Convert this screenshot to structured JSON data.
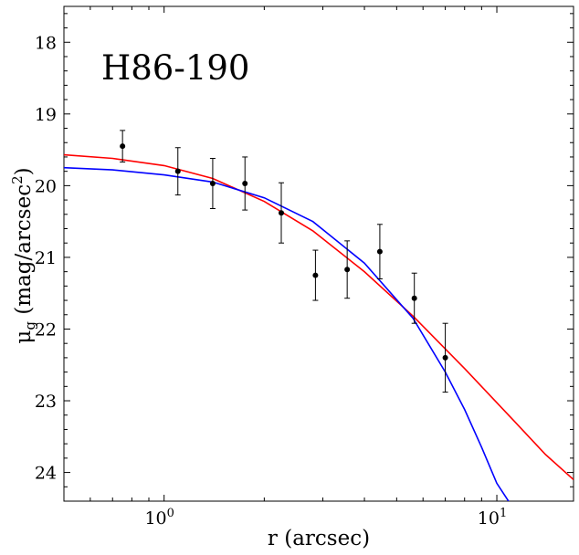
{
  "chart_data": {
    "type": "scatter",
    "title": "H86-190",
    "xlabel": "r (arcsec)",
    "ylabel_main": "μ",
    "ylabel_sub": "g",
    "ylabel_rest": " (mag/arcsec",
    "ylabel_sup": "2",
    "ylabel_end": ")",
    "xscale": "log",
    "xlim": [
      0.5,
      17
    ],
    "ylim": [
      24.4,
      17.5
    ],
    "y_inverted": true,
    "x_ticks": [
      {
        "value": 1,
        "base": "10",
        "exp": "0"
      },
      {
        "value": 10,
        "base": "10",
        "exp": "1"
      }
    ],
    "y_ticks": [
      18,
      19,
      20,
      21,
      22,
      23,
      24
    ],
    "series": [
      {
        "kind": "points",
        "color": "#000000",
        "x": [
          0.75,
          1.1,
          1.4,
          1.75,
          2.25,
          2.85,
          3.55,
          4.45,
          5.65,
          7.0
        ],
        "y": [
          19.45,
          19.8,
          19.97,
          19.97,
          20.38,
          21.25,
          21.17,
          20.92,
          21.57,
          22.4
        ],
        "yerr": [
          0.22,
          0.33,
          0.35,
          0.37,
          0.42,
          0.35,
          0.4,
          0.38,
          0.35,
          0.48
        ]
      },
      {
        "kind": "curve",
        "color": "#ff0000",
        "x": [
          0.5,
          0.7,
          1.0,
          1.4,
          2.0,
          2.8,
          4.0,
          5.6,
          8.0,
          11.2,
          14.0,
          17.0
        ],
        "y": [
          19.57,
          19.62,
          19.72,
          19.9,
          20.22,
          20.63,
          21.2,
          21.82,
          22.55,
          23.27,
          23.75,
          24.1
        ]
      },
      {
        "kind": "curve",
        "color": "#0000ff",
        "x": [
          0.5,
          0.7,
          1.0,
          1.4,
          2.0,
          2.8,
          4.0,
          5.6,
          7.0,
          8.0,
          9.0,
          10.0,
          11.2
        ],
        "y": [
          19.75,
          19.78,
          19.85,
          19.95,
          20.17,
          20.5,
          21.08,
          21.85,
          22.6,
          23.12,
          23.65,
          24.15,
          24.5
        ]
      }
    ]
  }
}
